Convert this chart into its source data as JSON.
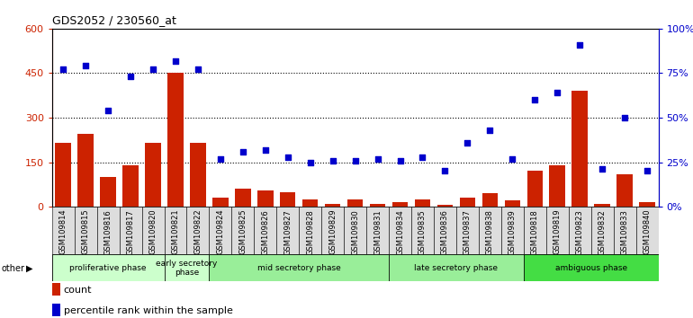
{
  "title": "GDS2052 / 230560_at",
  "samples": [
    "GSM109814",
    "GSM109815",
    "GSM109816",
    "GSM109817",
    "GSM109820",
    "GSM109821",
    "GSM109822",
    "GSM109824",
    "GSM109825",
    "GSM109826",
    "GSM109827",
    "GSM109828",
    "GSM109829",
    "GSM109830",
    "GSM109831",
    "GSM109834",
    "GSM109835",
    "GSM109836",
    "GSM109837",
    "GSM109838",
    "GSM109839",
    "GSM109818",
    "GSM109819",
    "GSM109823",
    "GSM109832",
    "GSM109833",
    "GSM109840"
  ],
  "counts": [
    215,
    245,
    100,
    140,
    215,
    450,
    215,
    30,
    60,
    55,
    50,
    25,
    10,
    25,
    10,
    15,
    25,
    5,
    30,
    45,
    20,
    120,
    140,
    390,
    10,
    110,
    15
  ],
  "percentiles": [
    77,
    79,
    54,
    73,
    77,
    82,
    77,
    27,
    31,
    32,
    28,
    25,
    26,
    26,
    27,
    26,
    28,
    20,
    36,
    43,
    27,
    60,
    64,
    91,
    21,
    50,
    20
  ],
  "phases": [
    {
      "label": "proliferative phase",
      "start": 0,
      "end": 5,
      "color": "#ccffcc"
    },
    {
      "label": "early secretory\nphase",
      "start": 5,
      "end": 7,
      "color": "#ccffcc"
    },
    {
      "label": "mid secretory phase",
      "start": 7,
      "end": 15,
      "color": "#99ee99"
    },
    {
      "label": "late secretory phase",
      "start": 15,
      "end": 21,
      "color": "#99ee99"
    },
    {
      "label": "ambiguous phase",
      "start": 21,
      "end": 27,
      "color": "#44dd44"
    }
  ],
  "bar_color": "#cc2200",
  "dot_color": "#0000cc",
  "ylim_left": [
    0,
    600
  ],
  "ylim_right": [
    0,
    100
  ],
  "yticks_left": [
    0,
    150,
    300,
    450,
    600
  ],
  "ytick_labels_left": [
    "0",
    "150",
    "300",
    "450",
    "600"
  ],
  "yticks_right": [
    0,
    25,
    50,
    75,
    100
  ],
  "ytick_labels_right": [
    "0%",
    "25%",
    "50%",
    "75%",
    "100%"
  ],
  "bg_color": "#ffffff",
  "tick_box_color": "#dddddd",
  "other_label": "other"
}
